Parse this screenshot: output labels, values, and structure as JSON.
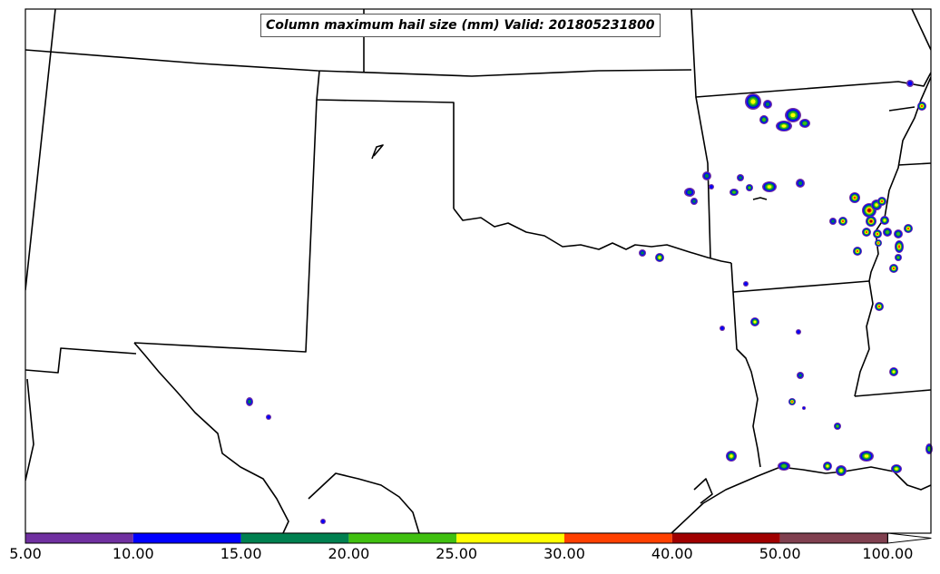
{
  "title": "Column maximum hail size (mm) Valid: 201805231800",
  "colorbar": {
    "labels": [
      "5.00",
      "10.00",
      "15.00",
      "20.00",
      "25.00",
      "30.00",
      "40.00",
      "50.00",
      "100.00"
    ],
    "colors": [
      "#7030a0",
      "#0000ff",
      "#008050",
      "#40c010",
      "#ffff00",
      "#ff4000",
      "#a00000",
      "#804050"
    ],
    "extend": "max"
  },
  "colors": {
    "background": "#ffffff",
    "boundaries": "#000000",
    "hail_outer": "#7030a0",
    "hail_ring2": "#0000ff",
    "hail_ring3": "#008050",
    "hail_ring4": "#40c010",
    "hail_ring5": "#ffff00",
    "hail_core": "#ff4000",
    "hail_extreme": "#a00000"
  }
}
